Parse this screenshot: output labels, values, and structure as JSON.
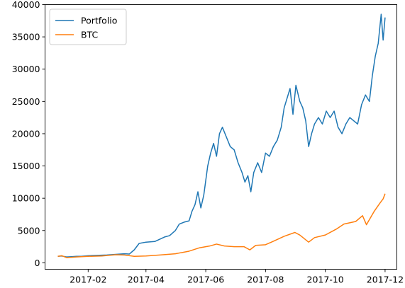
{
  "chart_data": {
    "type": "line",
    "title": "",
    "xlabel": "",
    "ylabel": "",
    "grid": false,
    "legend_position": "top-left",
    "xlim": [
      "2016-12-19",
      "2017-12-13"
    ],
    "ylim": [
      -1000,
      40000
    ],
    "x_ticks": [
      {
        "date": "2017-02-01",
        "label": "2017-02"
      },
      {
        "date": "2017-04-01",
        "label": "2017-04"
      },
      {
        "date": "2017-06-01",
        "label": "2017-06"
      },
      {
        "date": "2017-08-01",
        "label": "2017-08"
      },
      {
        "date": "2017-10-01",
        "label": "2017-10"
      },
      {
        "date": "2017-12-01",
        "label": "2017-12"
      }
    ],
    "y_ticks": [
      0,
      5000,
      10000,
      15000,
      20000,
      25000,
      30000,
      35000,
      40000
    ],
    "series": [
      {
        "name": "Portfolio",
        "color": "#1f77b4",
        "points": [
          [
            "2017-01-01",
            1000
          ],
          [
            "2017-01-05",
            1050
          ],
          [
            "2017-01-10",
            900
          ],
          [
            "2017-01-15",
            950
          ],
          [
            "2017-01-20",
            1000
          ],
          [
            "2017-01-25",
            1000
          ],
          [
            "2017-02-01",
            1100
          ],
          [
            "2017-02-10",
            1150
          ],
          [
            "2017-02-20",
            1200
          ],
          [
            "2017-03-01",
            1300
          ],
          [
            "2017-03-10",
            1400
          ],
          [
            "2017-03-15",
            1350
          ],
          [
            "2017-03-20",
            2000
          ],
          [
            "2017-03-25",
            3000
          ],
          [
            "2017-04-01",
            3200
          ],
          [
            "2017-04-10",
            3300
          ],
          [
            "2017-04-20",
            4000
          ],
          [
            "2017-04-25",
            4200
          ],
          [
            "2017-05-01",
            5000
          ],
          [
            "2017-05-05",
            6000
          ],
          [
            "2017-05-10",
            6300
          ],
          [
            "2017-05-15",
            6500
          ],
          [
            "2017-05-18",
            8000
          ],
          [
            "2017-05-21",
            9000
          ],
          [
            "2017-05-24",
            11000
          ],
          [
            "2017-05-27",
            8500
          ],
          [
            "2017-05-30",
            10500
          ],
          [
            "2017-06-03",
            15000
          ],
          [
            "2017-06-06",
            17000
          ],
          [
            "2017-06-09",
            18500
          ],
          [
            "2017-06-12",
            16500
          ],
          [
            "2017-06-15",
            20000
          ],
          [
            "2017-06-18",
            21000
          ],
          [
            "2017-06-22",
            19500
          ],
          [
            "2017-06-26",
            18000
          ],
          [
            "2017-06-30",
            17500
          ],
          [
            "2017-07-04",
            15500
          ],
          [
            "2017-07-08",
            14000
          ],
          [
            "2017-07-11",
            12500
          ],
          [
            "2017-07-14",
            13500
          ],
          [
            "2017-07-17",
            11000
          ],
          [
            "2017-07-20",
            14000
          ],
          [
            "2017-07-24",
            15500
          ],
          [
            "2017-07-28",
            14000
          ],
          [
            "2017-08-01",
            17000
          ],
          [
            "2017-08-05",
            16500
          ],
          [
            "2017-08-09",
            18000
          ],
          [
            "2017-08-13",
            19000
          ],
          [
            "2017-08-17",
            21000
          ],
          [
            "2017-08-20",
            24000
          ],
          [
            "2017-08-23",
            25500
          ],
          [
            "2017-08-26",
            27000
          ],
          [
            "2017-08-29",
            23000
          ],
          [
            "2017-09-01",
            27500
          ],
          [
            "2017-09-05",
            25000
          ],
          [
            "2017-09-08",
            24000
          ],
          [
            "2017-09-11",
            22000
          ],
          [
            "2017-09-14",
            18000
          ],
          [
            "2017-09-17",
            20000
          ],
          [
            "2017-09-20",
            21500
          ],
          [
            "2017-09-24",
            22500
          ],
          [
            "2017-09-28",
            21500
          ],
          [
            "2017-10-02",
            23500
          ],
          [
            "2017-10-06",
            22500
          ],
          [
            "2017-10-10",
            23500
          ],
          [
            "2017-10-14",
            21000
          ],
          [
            "2017-10-18",
            20000
          ],
          [
            "2017-10-22",
            21500
          ],
          [
            "2017-10-26",
            22500
          ],
          [
            "2017-10-30",
            22000
          ],
          [
            "2017-11-03",
            21500
          ],
          [
            "2017-11-07",
            24500
          ],
          [
            "2017-11-11",
            26000
          ],
          [
            "2017-11-15",
            25000
          ],
          [
            "2017-11-18",
            29000
          ],
          [
            "2017-11-21",
            32000
          ],
          [
            "2017-11-24",
            34000
          ],
          [
            "2017-11-27",
            38500
          ],
          [
            "2017-11-29",
            34500
          ],
          [
            "2017-12-01",
            38000
          ]
        ]
      },
      {
        "name": "BTC",
        "color": "#ff7f0e",
        "points": [
          [
            "2017-01-01",
            1000
          ],
          [
            "2017-01-05",
            1100
          ],
          [
            "2017-01-10",
            800
          ],
          [
            "2017-01-20",
            900
          ],
          [
            "2017-02-01",
            1000
          ],
          [
            "2017-02-15",
            1050
          ],
          [
            "2017-03-01",
            1250
          ],
          [
            "2017-03-10",
            1200
          ],
          [
            "2017-03-20",
            1000
          ],
          [
            "2017-04-01",
            1050
          ],
          [
            "2017-04-15",
            1200
          ],
          [
            "2017-05-01",
            1400
          ],
          [
            "2017-05-15",
            1800
          ],
          [
            "2017-05-25",
            2300
          ],
          [
            "2017-06-05",
            2600
          ],
          [
            "2017-06-12",
            2900
          ],
          [
            "2017-06-20",
            2600
          ],
          [
            "2017-06-30",
            2500
          ],
          [
            "2017-07-10",
            2500
          ],
          [
            "2017-07-16",
            2000
          ],
          [
            "2017-07-22",
            2700
          ],
          [
            "2017-08-01",
            2800
          ],
          [
            "2017-08-10",
            3400
          ],
          [
            "2017-08-20",
            4100
          ],
          [
            "2017-08-31",
            4700
          ],
          [
            "2017-09-05",
            4300
          ],
          [
            "2017-09-14",
            3200
          ],
          [
            "2017-09-20",
            3900
          ],
          [
            "2017-10-01",
            4300
          ],
          [
            "2017-10-12",
            5200
          ],
          [
            "2017-10-20",
            6000
          ],
          [
            "2017-11-01",
            6400
          ],
          [
            "2017-11-08",
            7300
          ],
          [
            "2017-11-12",
            5900
          ],
          [
            "2017-11-20",
            8000
          ],
          [
            "2017-11-26",
            9300
          ],
          [
            "2017-11-29",
            9900
          ],
          [
            "2017-12-01",
            10700
          ]
        ]
      }
    ]
  }
}
